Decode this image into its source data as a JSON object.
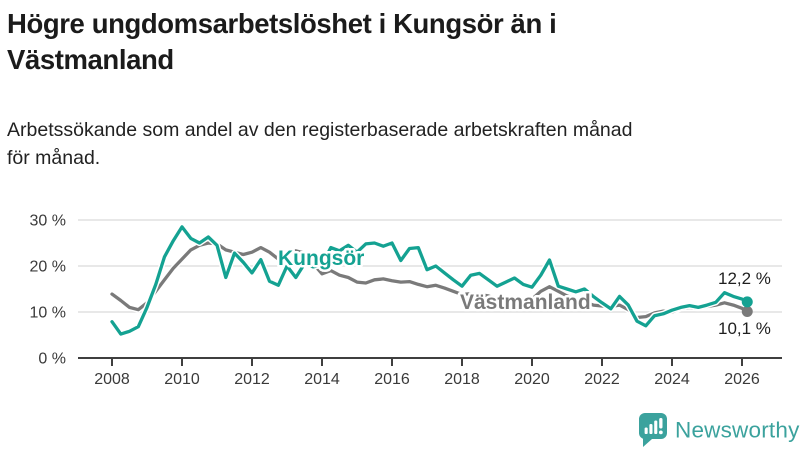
{
  "header": {
    "title_line1": "Högre ungdomsarbetslöshet i Kungsör än i",
    "title_line2": "Västmanland",
    "subtitle_line1": "Arbetssökande som andel av den registerbaserade arbetskraften månad",
    "subtitle_line2": "för månad."
  },
  "chart_data": {
    "type": "line",
    "xlabel": "",
    "ylabel": "",
    "ylim": [
      0,
      30
    ],
    "grid": "horizontal",
    "yticks": [
      {
        "value": 0,
        "label": "0 %"
      },
      {
        "value": 10,
        "label": "10 %"
      },
      {
        "value": 20,
        "label": "20 %"
      },
      {
        "value": 30,
        "label": "30 %"
      }
    ],
    "xticks": [
      {
        "year": 2008,
        "label": "2008"
      },
      {
        "year": 2010,
        "label": "2010"
      },
      {
        "year": 2012,
        "label": "2012"
      },
      {
        "year": 2014,
        "label": "2014"
      },
      {
        "year": 2016,
        "label": "2016"
      },
      {
        "year": 2018,
        "label": "2018"
      },
      {
        "year": 2020,
        "label": "2020"
      },
      {
        "year": 2022,
        "label": "2022"
      },
      {
        "year": 2024,
        "label": "2024"
      },
      {
        "year": 2026,
        "label": "2026"
      }
    ],
    "x": [
      2008,
      2008.25,
      2008.5,
      2008.75,
      2009,
      2009.25,
      2009.5,
      2009.75,
      2010,
      2010.25,
      2010.5,
      2010.75,
      2011,
      2011.25,
      2011.5,
      2011.75,
      2012,
      2012.25,
      2012.5,
      2012.75,
      2013,
      2013.25,
      2013.5,
      2013.75,
      2014,
      2014.25,
      2014.5,
      2014.75,
      2015,
      2015.25,
      2015.5,
      2015.75,
      2016,
      2016.25,
      2016.5,
      2016.75,
      2017,
      2017.25,
      2017.5,
      2017.75,
      2018,
      2018.25,
      2018.5,
      2018.75,
      2019,
      2019.25,
      2019.5,
      2019.75,
      2020,
      2020.25,
      2020.5,
      2020.75,
      2021,
      2021.25,
      2021.5,
      2021.75,
      2022,
      2022.25,
      2022.5,
      2022.75,
      2023,
      2023.25,
      2023.5,
      2023.75,
      2024,
      2024.25,
      2024.5,
      2024.75,
      2025,
      2025.25,
      2025.5,
      2025.75,
      2026,
      2026.15
    ],
    "series": [
      {
        "name": "Kungsör",
        "color": "#14a292",
        "end_label": "12,2 %",
        "end_value": 12.2,
        "values": [
          7.9,
          5.2,
          5.8,
          6.8,
          11.0,
          16.0,
          22.0,
          25.5,
          28.5,
          26.0,
          25.0,
          26.3,
          24.5,
          17.5,
          22.8,
          20.8,
          18.5,
          21.4,
          16.7,
          15.8,
          20.0,
          17.5,
          20.5,
          19.8,
          20.3,
          24.0,
          23.3,
          24.5,
          23.0,
          24.8,
          25.0,
          24.3,
          25.0,
          21.2,
          23.8,
          24.0,
          19.2,
          20.0,
          18.5,
          17.0,
          15.6,
          18.0,
          18.4,
          17.0,
          15.6,
          16.5,
          17.4,
          16.0,
          15.4,
          18.0,
          21.3,
          15.6,
          15.0,
          14.4,
          15.0,
          13.4,
          12.0,
          10.7,
          13.4,
          11.5,
          8.0,
          7.0,
          9.2,
          9.6,
          10.4,
          11.0,
          11.4,
          11.0,
          11.5,
          12.1,
          14.2,
          13.4,
          12.8,
          12.2
        ]
      },
      {
        "name": "Västmanland",
        "color": "#7a7a7a",
        "end_label": "10,1 %",
        "end_value": 10.1,
        "values": [
          13.9,
          12.5,
          11.0,
          10.5,
          12.0,
          14.5,
          17.0,
          19.5,
          21.5,
          23.5,
          24.5,
          25.0,
          24.8,
          23.5,
          23.0,
          22.5,
          23.0,
          24.0,
          23.0,
          21.5,
          22.5,
          23.3,
          22.8,
          20.5,
          18.3,
          19.0,
          18.0,
          17.5,
          16.5,
          16.3,
          17.0,
          17.2,
          16.8,
          16.5,
          16.6,
          16.0,
          15.5,
          15.8,
          15.2,
          14.5,
          13.8,
          14.0,
          13.8,
          13.5,
          12.8,
          12.5,
          12.8,
          12.5,
          12.8,
          14.5,
          15.5,
          14.5,
          13.5,
          12.8,
          12.2,
          11.5,
          11.3,
          11.2,
          11.5,
          10.5,
          8.8,
          9.0,
          9.8,
          10.2,
          10.0,
          10.8,
          11.0,
          10.8,
          11.2,
          11.5,
          12.0,
          11.5,
          10.8,
          10.1
        ]
      }
    ],
    "colors": {
      "grid": "#d9d9d9",
      "axis": "#3f3f3f"
    }
  },
  "logo": {
    "text": "Newsworthy",
    "color": "#3ba29d"
  }
}
